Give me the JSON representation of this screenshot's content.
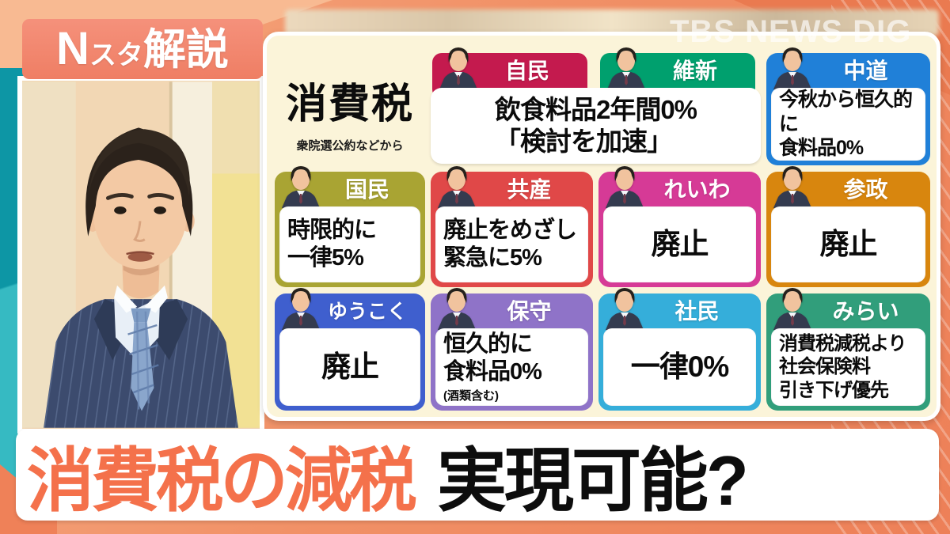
{
  "badge": {
    "n": "N",
    "suta": "スタ",
    "kaisetsu": "解説"
  },
  "watermark": "TBS NEWS DIG",
  "panel": {
    "title": "消費税",
    "subtitle": "衆院選公約などから",
    "combined": {
      "parties": [
        {
          "name": "自民",
          "color": "#c41a4e"
        },
        {
          "name": "維新",
          "color": "#00a06e"
        }
      ],
      "text": "飲食料品2年間0%\n「検討を加速」"
    },
    "cards": [
      {
        "name": "中道",
        "color": "#2080d8",
        "text": "今秋から恒久的に\n食料品0%"
      },
      {
        "name": "国民",
        "color": "#a9a433",
        "text": "時限的に\n一律5%"
      },
      {
        "name": "共産",
        "color": "#e04848",
        "text": "廃止をめざし\n緊急に5%"
      },
      {
        "name": "れいわ",
        "color": "#d63a96",
        "text": "廃止"
      },
      {
        "name": "参政",
        "color": "#d8860e",
        "text": "廃止"
      },
      {
        "name": "ゆうこく",
        "color": "#3f5fce",
        "text": "廃止"
      },
      {
        "name": "保守",
        "color": "#8f73c8",
        "text": "恒久的に\n食料品0%",
        "note": "(酒類含む)"
      },
      {
        "name": "社民",
        "color": "#35aeda",
        "text": "一律0%"
      },
      {
        "name": "みらい",
        "color": "#319e7b",
        "text": "消費税減税より\n社会保険料\n引き下げ優先"
      }
    ]
  },
  "headline": {
    "highlight": "消費税の減税",
    "question": "実現可能?"
  },
  "icons": {
    "politician_photo": "person-bust-silhouette",
    "presenter_photo": "news-anchor-portrait"
  },
  "colors": {
    "badge_bg": "#f2836d",
    "panel_bg": "#fbf4d9",
    "bg_orange": "#f08a60",
    "teal_band": "#14a0ae",
    "headline_highlight": "#f4714b",
    "headline_text": "#0d0d0d"
  }
}
